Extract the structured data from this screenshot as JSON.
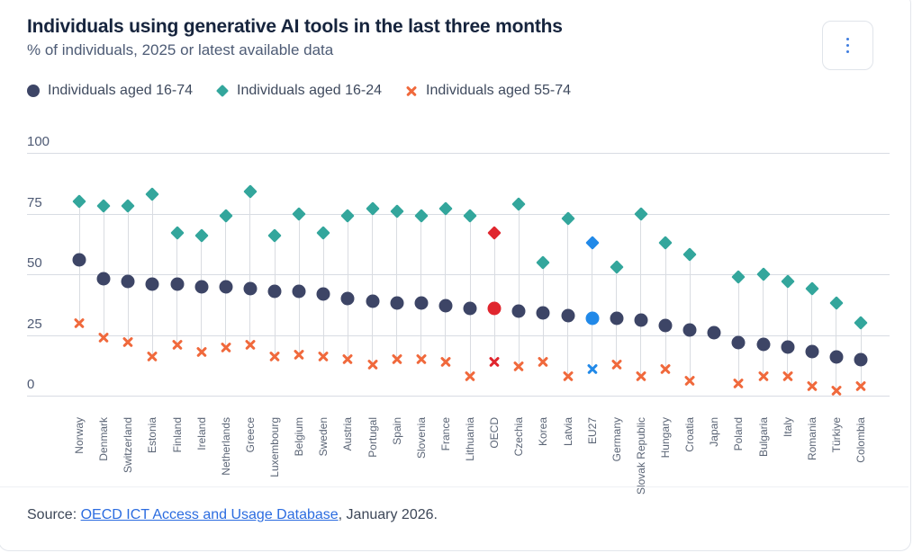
{
  "header": {
    "title": "Individuals using generative AI tools in the last three months",
    "subtitle": "% of individuals, 2025 or latest available data",
    "menu_icon": "kebab-vertical-dots"
  },
  "legend": {
    "items": [
      {
        "label": "Individuals aged 16-74",
        "marker": "circle",
        "color": "#3d4566"
      },
      {
        "label": "Individuals aged 16-24",
        "marker": "diamond",
        "color": "#33a69c"
      },
      {
        "label": "Individuals aged 55-74",
        "marker": "x",
        "color": "#f0693c"
      }
    ]
  },
  "chart_data": {
    "type": "scatter",
    "title": "Individuals using generative AI tools in the last three months",
    "subtitle": "% of individuals, 2025 or latest available data",
    "xlabel": "",
    "ylabel": "",
    "ylim": [
      0,
      100
    ],
    "yticks": [
      0,
      25,
      50,
      75,
      100
    ],
    "grid": true,
    "legend_position": "top",
    "categories": [
      "Norway",
      "Denmark",
      "Switzerland",
      "Estonia",
      "Finland",
      "Ireland",
      "Netherlands",
      "Greece",
      "Luxembourg",
      "Belgium",
      "Sweden",
      "Austria",
      "Portugal",
      "Spain",
      "Slovenia",
      "France",
      "Lithuania",
      "OECD",
      "Czechia",
      "Korea",
      "Latvia",
      "EU27",
      "Germany",
      "Slovak Republic",
      "Hungary",
      "Croatia",
      "Japan",
      "Poland",
      "Bulgaria",
      "Italy",
      "Romania",
      "Türkiye",
      "Colombia"
    ],
    "series": [
      {
        "name": "Individuals aged 16-74",
        "marker": "circle",
        "color": "#3d4566",
        "values": [
          56,
          48,
          47,
          46,
          46,
          45,
          45,
          44,
          43,
          43,
          42,
          40,
          39,
          38,
          38,
          37,
          36,
          36,
          35,
          34,
          33,
          32,
          32,
          31,
          29,
          27,
          26,
          22,
          21,
          20,
          18,
          16,
          15
        ]
      },
      {
        "name": "Individuals aged 16-24",
        "marker": "diamond",
        "color": "#33a69c",
        "values": [
          80,
          78,
          78,
          83,
          67,
          66,
          74,
          84,
          66,
          75,
          67,
          74,
          77,
          76,
          74,
          77,
          74,
          67,
          79,
          55,
          73,
          63,
          53,
          75,
          63,
          58,
          null,
          49,
          50,
          47,
          44,
          38,
          30
        ]
      },
      {
        "name": "Individuals aged 55-74",
        "marker": "x",
        "color": "#f0693c",
        "values": [
          30,
          24,
          22,
          16,
          21,
          18,
          20,
          21,
          16,
          17,
          16,
          15,
          13,
          15,
          15,
          14,
          8,
          14,
          12,
          14,
          8,
          11,
          13,
          8,
          11,
          6,
          null,
          5,
          8,
          8,
          4,
          2,
          4
        ]
      }
    ],
    "highlighted_categories": {
      "OECD": "#e0262e",
      "EU27": "#2189e8"
    }
  },
  "footer": {
    "source_prefix": "Source: ",
    "source_link": "OECD ICT Access and Usage Database",
    "source_suffix": ", January 2026."
  }
}
